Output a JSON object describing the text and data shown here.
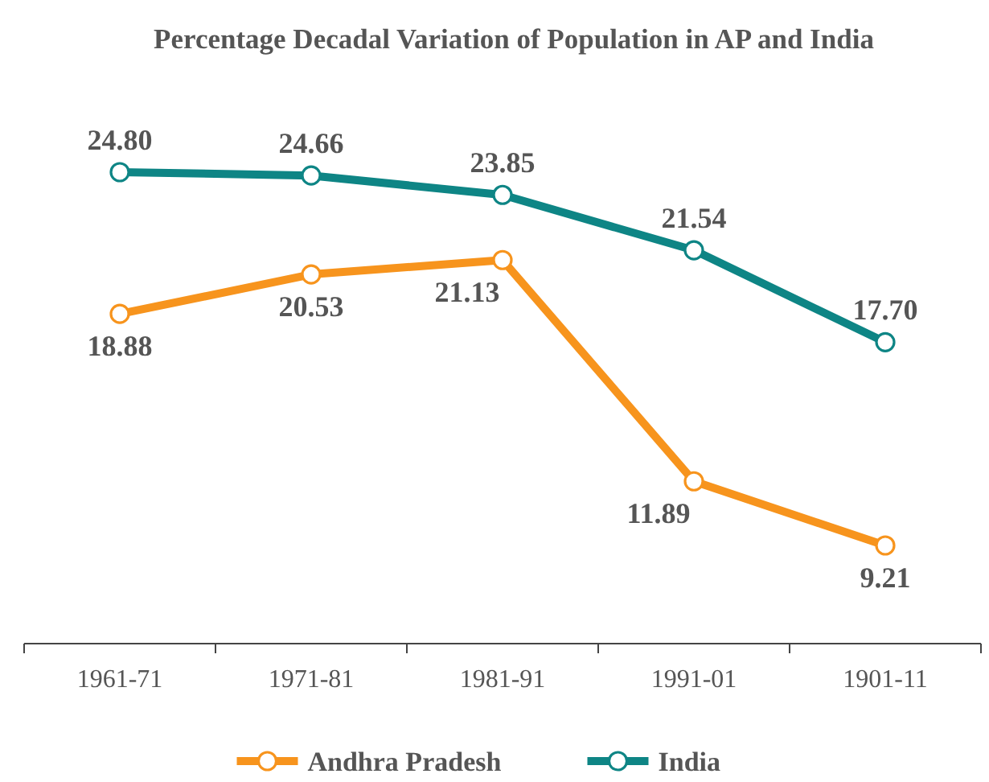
{
  "chart_data": {
    "type": "line",
    "title": "Percentage Decadal Variation of Population in AP and India",
    "categories": [
      "1961-71",
      "1971-81",
      "1981-91",
      "1991-01",
      "1901-11"
    ],
    "series": [
      {
        "name": "Andhra Pradesh",
        "color": "#f7941d",
        "values": [
          18.88,
          20.53,
          21.13,
          11.89,
          9.21
        ],
        "value_labels": [
          "18.88",
          "20.53",
          "21.13",
          "11.89",
          "9.21"
        ]
      },
      {
        "name": "India",
        "color": "#0e8585",
        "values": [
          24.8,
          24.66,
          23.85,
          21.54,
          17.7
        ],
        "value_labels": [
          "24.80",
          "24.66",
          "23.85",
          "21.54",
          "17.70"
        ]
      }
    ],
    "marker": "circle",
    "legend": "bottom"
  }
}
